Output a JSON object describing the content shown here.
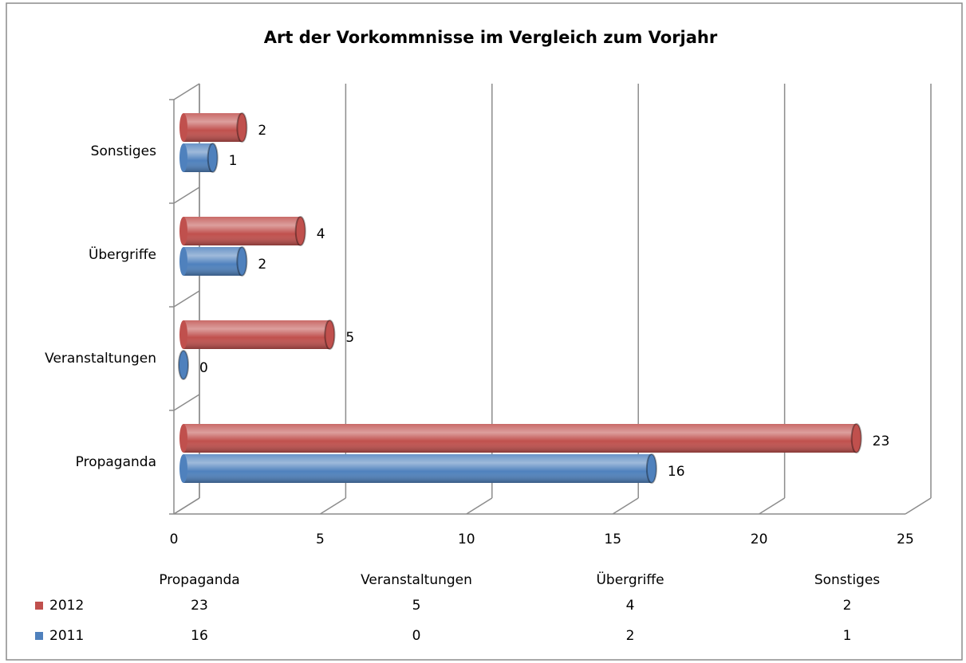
{
  "chart_data": {
    "type": "bar",
    "orientation": "horizontal",
    "title": "Art der Vorkommnisse im Vergleich zum Vorjahr",
    "categories": [
      "Propaganda",
      "Veranstaltungen",
      "Übergriffe",
      "Sonstiges"
    ],
    "series": [
      {
        "name": "2012",
        "color": "#c0504d",
        "values": [
          23,
          5,
          4,
          2
        ]
      },
      {
        "name": "2011",
        "color": "#4f81bd",
        "values": [
          16,
          0,
          2,
          1
        ]
      }
    ],
    "xlim": [
      0,
      25
    ],
    "xticks": [
      0,
      5,
      10,
      15,
      20,
      25
    ],
    "grid": true,
    "data_table": true
  }
}
